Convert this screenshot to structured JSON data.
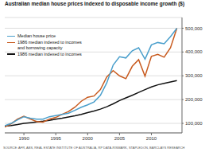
{
  "chart_data": {
    "type": "line",
    "title": "Australian median house prices indexed to disposable income growth ($)",
    "annotations": [
      "SOURCE: AFR, ABS, REAL ESTATE INSTITUTE OF AUSTRALIA, RP DATA-RISMARK, STAPLEDON, BARCLAYS RESEARCH"
    ],
    "x": [
      1987,
      1988,
      1989,
      1990,
      1991,
      1992,
      1993,
      1994,
      1995,
      1996,
      1997,
      1998,
      1999,
      2000,
      2001,
      2002,
      2003,
      2004,
      2005,
      2006,
      2007,
      2008,
      2009,
      2010,
      2011,
      2012,
      2013,
      2014
    ],
    "xlim": [
      1987.0,
      2014.8
    ],
    "xticks": [
      1990,
      1995,
      2000,
      2005,
      2010
    ],
    "ylim": [
      60000,
      545000
    ],
    "yticks": [
      {
        "value": 100000,
        "label": "100,000"
      },
      {
        "value": 200000,
        "label": "200,000"
      },
      {
        "value": 300000,
        "label": "300,000"
      },
      {
        "value": 400000,
        "label": "400,000"
      },
      {
        "value": 500000,
        "label": "500,000"
      }
    ],
    "grid": true,
    "legend": "upper left",
    "series": [
      {
        "name": "Median house price",
        "color": "#4a9fcc",
        "values": [
          90000,
          100000,
          115000,
          128000,
          122000,
          118000,
          118000,
          128000,
          133000,
          138000,
          143000,
          155000,
          168000,
          178000,
          190000,
          218000,
          270000,
          345000,
          380000,
          375000,
          405000,
          418000,
          370000,
          430000,
          440000,
          435000,
          465000,
          500000
        ]
      },
      {
        "name": "1986 median indexed to incomes\nand borrowing capacity",
        "color": "#c85a1e",
        "values": [
          85000,
          98000,
          118000,
          130000,
          118000,
          108000,
          105000,
          118000,
          125000,
          138000,
          150000,
          168000,
          193000,
          210000,
          215000,
          242000,
          295000,
          322000,
          300000,
          288000,
          340000,
          368000,
          298000,
          382000,
          390000,
          378000,
          418000,
          500000
        ]
      },
      {
        "name": "1986 median indexed to incomes",
        "color": "#111111",
        "values": [
          88000,
          91000,
          95000,
          100000,
          103000,
          106000,
          109000,
          113000,
          118000,
          122000,
          127000,
          132000,
          138000,
          145000,
          152000,
          160000,
          170000,
          182000,
          196000,
          207000,
          218000,
          230000,
          242000,
          253000,
          262000,
          268000,
          274000,
          280000
        ]
      }
    ]
  }
}
